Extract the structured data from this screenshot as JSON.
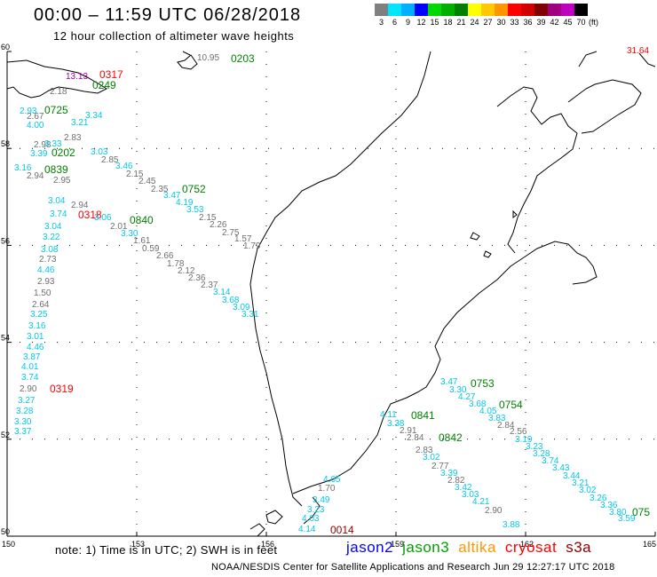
{
  "header": {
    "title": "00:00 – 11:59 UTC 06/28/2018",
    "subtitle": "12 hour collection of altimeter wave heights"
  },
  "colorbar": {
    "colors": [
      "#7f7f7f",
      "#00e5ff",
      "#00b0ff",
      "#0000ff",
      "#00d800",
      "#00b000",
      "#008000",
      "#ffff00",
      "#ffc800",
      "#ff9600",
      "#ff0000",
      "#d00000",
      "#800000",
      "#a00080",
      "#c000c0",
      "#000000"
    ],
    "labels": [
      "3",
      "6",
      "9",
      "12",
      "15",
      "18",
      "21",
      "24",
      "27",
      "30",
      "33",
      "36",
      "39",
      "42",
      "45",
      "70"
    ],
    "unit": "(ft)"
  },
  "map": {
    "lat_labels": [
      "60",
      "58",
      "56",
      "54",
      "52",
      "50"
    ],
    "lon_labels": [
      "150",
      "153",
      "156",
      "159",
      "162",
      "165"
    ],
    "colors": {
      "gray": "#6e6e6e",
      "cyan": "#00c8e8",
      "green": "#008000",
      "red": "#ff0000",
      "purple": "#a000a0",
      "darkred": "#8b0000"
    },
    "times": [
      {
        "t": "0203",
        "c": "green"
      },
      {
        "t": "0317",
        "c": "red"
      },
      {
        "t": "0249",
        "c": "green"
      },
      {
        "t": "0725",
        "c": "green"
      },
      {
        "t": "0202",
        "c": "green"
      },
      {
        "t": "0839",
        "c": "green"
      },
      {
        "t": "0752",
        "c": "green"
      },
      {
        "t": "0318",
        "c": "red"
      },
      {
        "t": "0840",
        "c": "green"
      },
      {
        "t": "0319",
        "c": "red"
      },
      {
        "t": "0753",
        "c": "green"
      },
      {
        "t": "0754",
        "c": "green"
      },
      {
        "t": "0841",
        "c": "green"
      },
      {
        "t": "0842",
        "c": "green"
      },
      {
        "t": "0014",
        "c": "darkred"
      },
      {
        "t": "075",
        "c": "green"
      }
    ],
    "waves": [
      {
        "v": "31.64",
        "c": "red"
      },
      {
        "v": "10.95",
        "c": "gray"
      },
      {
        "v": "13.13",
        "c": "purple"
      },
      {
        "v": "2.18",
        "c": "gray"
      },
      {
        "v": "2.93",
        "c": "cyan"
      },
      {
        "v": "2.67",
        "c": "gray"
      },
      {
        "v": "4.00",
        "c": "cyan"
      },
      {
        "v": "3.34",
        "c": "cyan"
      },
      {
        "v": "3.21",
        "c": "cyan"
      },
      {
        "v": "2.83",
        "c": "gray"
      },
      {
        "v": "2.98",
        "c": "gray"
      },
      {
        "v": "3.33",
        "c": "cyan"
      },
      {
        "v": "3.39",
        "c": "cyan"
      },
      {
        "v": "3.03",
        "c": "cyan"
      },
      {
        "v": "2.85",
        "c": "gray"
      },
      {
        "v": "3.16",
        "c": "cyan"
      },
      {
        "v": "3.46",
        "c": "cyan"
      },
      {
        "v": "2.94",
        "c": "gray"
      },
      {
        "v": "2.95",
        "c": "gray"
      },
      {
        "v": "2.15",
        "c": "gray"
      },
      {
        "v": "2.45",
        "c": "gray"
      },
      {
        "v": "2.35",
        "c": "gray"
      },
      {
        "v": "3.47",
        "c": "cyan"
      },
      {
        "v": "4.19",
        "c": "cyan"
      },
      {
        "v": "3.53",
        "c": "cyan"
      },
      {
        "v": "2.15",
        "c": "gray"
      },
      {
        "v": "2.26",
        "c": "gray"
      },
      {
        "v": "2.75",
        "c": "gray"
      },
      {
        "v": "1.57",
        "c": "gray"
      },
      {
        "v": "1.79",
        "c": "gray"
      },
      {
        "v": "3.04",
        "c": "cyan"
      },
      {
        "v": "3.74",
        "c": "cyan"
      },
      {
        "v": "2.94",
        "c": "gray"
      },
      {
        "v": "3.06",
        "c": "cyan"
      },
      {
        "v": "2.01",
        "c": "gray"
      },
      {
        "v": "3.30",
        "c": "cyan"
      },
      {
        "v": "3.04",
        "c": "cyan"
      },
      {
        "v": "3.22",
        "c": "cyan"
      },
      {
        "v": "1.61",
        "c": "gray"
      },
      {
        "v": "0.59",
        "c": "gray"
      },
      {
        "v": "3.08",
        "c": "cyan"
      },
      {
        "v": "2.66",
        "c": "gray"
      },
      {
        "v": "2.73",
        "c": "gray"
      },
      {
        "v": "1.78",
        "c": "gray"
      },
      {
        "v": "4.46",
        "c": "cyan"
      },
      {
        "v": "2.12",
        "c": "gray"
      },
      {
        "v": "2.93",
        "c": "gray"
      },
      {
        "v": "2.36",
        "c": "gray"
      },
      {
        "v": "2.37",
        "c": "gray"
      },
      {
        "v": "1.50",
        "c": "gray"
      },
      {
        "v": "3.14",
        "c": "cyan"
      },
      {
        "v": "3.68",
        "c": "cyan"
      },
      {
        "v": "2.64",
        "c": "gray"
      },
      {
        "v": "3.09",
        "c": "cyan"
      },
      {
        "v": "3.31",
        "c": "cyan"
      },
      {
        "v": "3.25",
        "c": "cyan"
      },
      {
        "v": "3.16",
        "c": "cyan"
      },
      {
        "v": "3.01",
        "c": "cyan"
      },
      {
        "v": "4.46",
        "c": "cyan"
      },
      {
        "v": "3.87",
        "c": "cyan"
      },
      {
        "v": "4.01",
        "c": "cyan"
      },
      {
        "v": "3.74",
        "c": "cyan"
      },
      {
        "v": "2.90",
        "c": "gray"
      },
      {
        "v": "3.27",
        "c": "cyan"
      },
      {
        "v": "3.28",
        "c": "cyan"
      },
      {
        "v": "3.30",
        "c": "cyan"
      },
      {
        "v": "3.37",
        "c": "cyan"
      },
      {
        "v": "3.47",
        "c": "cyan"
      },
      {
        "v": "3.30",
        "c": "cyan"
      },
      {
        "v": "4.27",
        "c": "cyan"
      },
      {
        "v": "3.68",
        "c": "cyan"
      },
      {
        "v": "4.05",
        "c": "cyan"
      },
      {
        "v": "3.83",
        "c": "cyan"
      },
      {
        "v": "4.11",
        "c": "cyan"
      },
      {
        "v": "3.38",
        "c": "cyan"
      },
      {
        "v": "2.84",
        "c": "gray"
      },
      {
        "v": "2.91",
        "c": "gray"
      },
      {
        "v": "2.56",
        "c": "gray"
      },
      {
        "v": "2.84",
        "c": "gray"
      },
      {
        "v": "3.19",
        "c": "cyan"
      },
      {
        "v": "3.23",
        "c": "cyan"
      },
      {
        "v": "3.28",
        "c": "cyan"
      },
      {
        "v": "2.83",
        "c": "gray"
      },
      {
        "v": "3.74",
        "c": "cyan"
      },
      {
        "v": "3.02",
        "c": "cyan"
      },
      {
        "v": "2.77",
        "c": "gray"
      },
      {
        "v": "3.43",
        "c": "cyan"
      },
      {
        "v": "3.39",
        "c": "cyan"
      },
      {
        "v": "3.44",
        "c": "cyan"
      },
      {
        "v": "2.82",
        "c": "gray"
      },
      {
        "v": "3.21",
        "c": "cyan"
      },
      {
        "v": "3.42",
        "c": "cyan"
      },
      {
        "v": "3.02",
        "c": "cyan"
      },
      {
        "v": "3.03",
        "c": "cyan"
      },
      {
        "v": "3.26",
        "c": "cyan"
      },
      {
        "v": "3.36",
        "c": "cyan"
      },
      {
        "v": "3.80",
        "c": "cyan"
      },
      {
        "v": "4.21",
        "c": "cyan"
      },
      {
        "v": "3.59",
        "c": "cyan"
      },
      {
        "v": "2.90",
        "c": "gray"
      },
      {
        "v": "3.88",
        "c": "cyan"
      },
      {
        "v": "4.65",
        "c": "cyan"
      },
      {
        "v": "1.70",
        "c": "gray"
      },
      {
        "v": "3.49",
        "c": "cyan"
      },
      {
        "v": "3.23",
        "c": "cyan"
      },
      {
        "v": "4.03",
        "c": "cyan"
      },
      {
        "v": "4.14",
        "c": "cyan"
      }
    ]
  },
  "footer": {
    "note": "note:  1) Time is in UTC;  2) SWH is in feet",
    "legend": [
      {
        "name": "jason2",
        "color": "#0000ff"
      },
      {
        "name": "jason3",
        "color": "#00a000"
      },
      {
        "name": "altika",
        "color": "#ff9600"
      },
      {
        "name": "cryosat",
        "color": "#ff0000"
      },
      {
        "name": "s3a",
        "color": "#8b0000"
      }
    ],
    "credit": "NOAA/NESDIS Center for Satellite Applications and Research    Jun 29 12:27:17 UTC 2018"
  }
}
